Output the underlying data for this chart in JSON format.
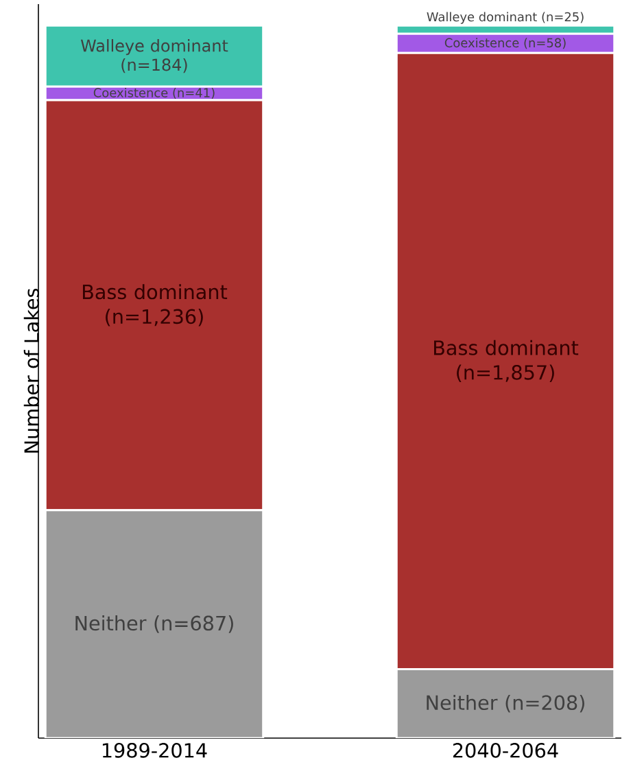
{
  "chart_data": {
    "type": "bar",
    "stacked": true,
    "ylabel": "Number of Lakes",
    "categories": [
      "1989-2014",
      "2040-2064"
    ],
    "tick_labels": "x",
    "series": [
      {
        "color": "#9b9b9b",
        "values": [
          687,
          208
        ],
        "value_labels": [
          "Neither (n=687)",
          "Neither (n=208)"
        ]
      },
      {
        "color": "#a8302e",
        "values": [
          1236,
          1857
        ],
        "value_labels": [
          "Bass dominant (n=1,236)",
          "Bass dominant (n=1,857)"
        ]
      },
      {
        "color": "#a259e6",
        "values": [
          41,
          58
        ],
        "value_labels": [
          "Coexistence (n=41)",
          "Coexistence (n=58)"
        ]
      },
      {
        "color": "#3ec4ad",
        "values": [
          184,
          25
        ],
        "value_labels": [
          "Walleye dominant (n=184)",
          "Walleye dominant (n=25)"
        ]
      }
    ]
  }
}
